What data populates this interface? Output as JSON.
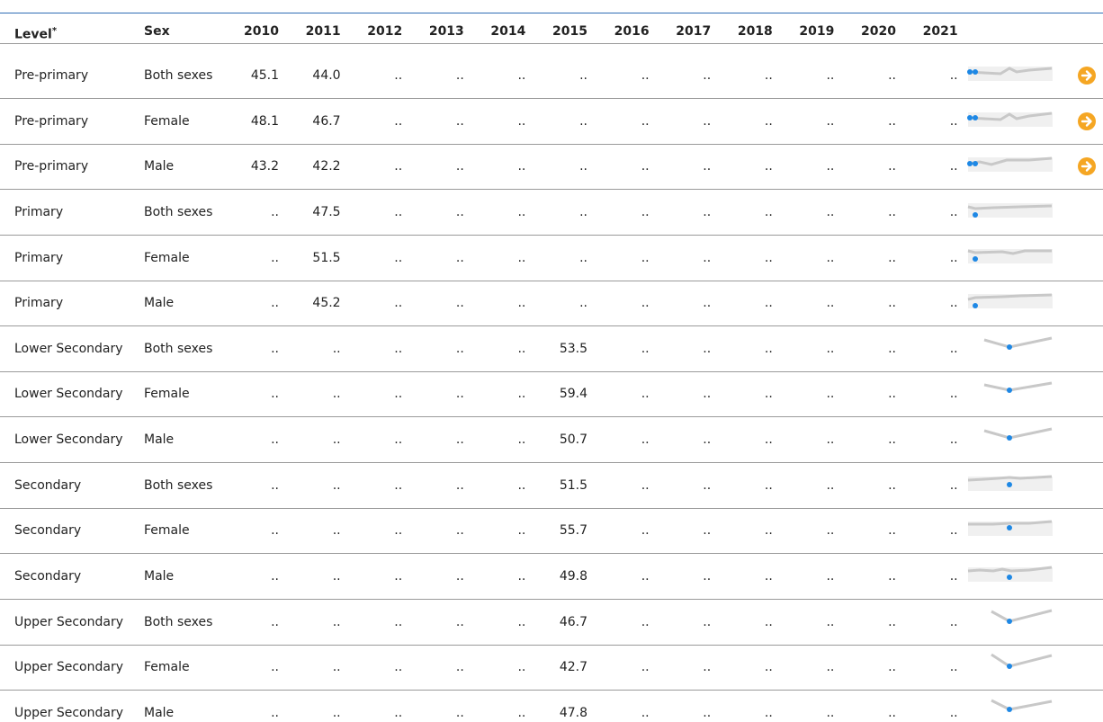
{
  "table": {
    "header": [
      "Level",
      "Sex",
      "2010",
      "2011",
      "2012",
      "2013",
      "2014",
      "2015",
      "2016",
      "2017",
      "2018",
      "2019",
      "2020",
      "2021"
    ],
    "header_mark": "*",
    "rows": [
      [
        "Pre-primary",
        "Both sexes",
        "45.1",
        "44.0",
        "..",
        "..",
        "..",
        "..",
        "..",
        "..",
        "..",
        "..",
        "..",
        ".."
      ],
      [
        "Pre-primary",
        "Female",
        "48.1",
        "46.7",
        "..",
        "..",
        "..",
        "..",
        "..",
        "..",
        "..",
        "..",
        "..",
        ".."
      ],
      [
        "Pre-primary",
        "Male",
        "43.2",
        "42.2",
        "..",
        "..",
        "..",
        "..",
        "..",
        "..",
        "..",
        "..",
        "..",
        ".."
      ],
      [
        "Primary",
        "Both sexes",
        "..",
        "47.5",
        "..",
        "..",
        "..",
        "..",
        "..",
        "..",
        "..",
        "..",
        "..",
        ".."
      ],
      [
        "Primary",
        "Female",
        "..",
        "51.5",
        "..",
        "..",
        "..",
        "..",
        "..",
        "..",
        "..",
        "..",
        "..",
        ".."
      ],
      [
        "Primary",
        "Male",
        "..",
        "45.2",
        "..",
        "..",
        "..",
        "..",
        "..",
        "..",
        "..",
        "..",
        "..",
        ".."
      ],
      [
        "Lower Secondary",
        "Both sexes",
        "..",
        "..",
        "..",
        "..",
        "..",
        "53.5",
        "..",
        "..",
        "..",
        "..",
        "..",
        ".."
      ],
      [
        "Lower Secondary",
        "Female",
        "..",
        "..",
        "..",
        "..",
        "..",
        "59.4",
        "..",
        "..",
        "..",
        "..",
        "..",
        ".."
      ],
      [
        "Lower Secondary",
        "Male",
        "..",
        "..",
        "..",
        "..",
        "..",
        "50.7",
        "..",
        "..",
        "..",
        "..",
        "..",
        ".."
      ],
      [
        "Secondary",
        "Both sexes",
        "..",
        "..",
        "..",
        "..",
        "..",
        "51.5",
        "..",
        "..",
        "..",
        "..",
        "..",
        ".."
      ],
      [
        "Secondary",
        "Female",
        "..",
        "..",
        "..",
        "..",
        "..",
        "55.7",
        "..",
        "..",
        "..",
        "..",
        "..",
        ".."
      ],
      [
        "Secondary",
        "Male",
        "..",
        "..",
        "..",
        "..",
        "..",
        "49.8",
        "..",
        "..",
        "..",
        "..",
        "..",
        ".."
      ],
      [
        "Upper Secondary",
        "Both sexes",
        "..",
        "..",
        "..",
        "..",
        "..",
        "46.7",
        "..",
        "..",
        "..",
        "..",
        "..",
        ".."
      ],
      [
        "Upper Secondary",
        "Female",
        "..",
        "..",
        "..",
        "..",
        "..",
        "42.7",
        "..",
        "..",
        "..",
        "..",
        "..",
        ".."
      ],
      [
        "Upper Secondary",
        "Male",
        "..",
        "..",
        "..",
        "..",
        "..",
        "47.8",
        "..",
        "..",
        "..",
        "..",
        "..",
        ".."
      ]
    ]
  }
}
